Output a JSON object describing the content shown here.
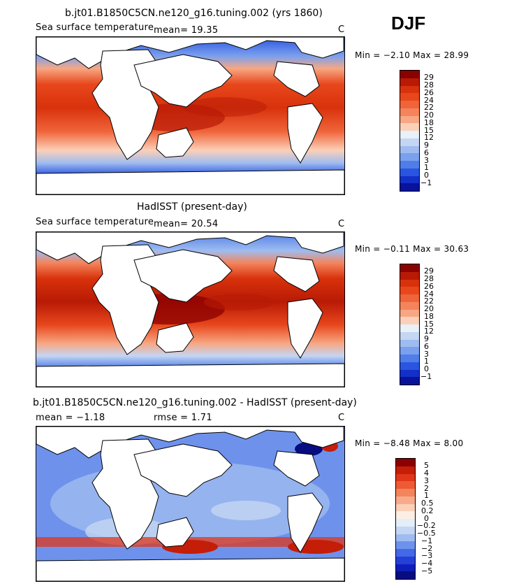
{
  "season": "DJF",
  "panels": [
    {
      "title": "b.jt01.B1850C5CN.ne120_g16.tuning.002 (yrs 1860)",
      "left_label": "Sea surface temperature",
      "stat1": "mean=  19.35",
      "stat2": "",
      "units": "C",
      "minmax": "Min =  −2.10 Max =  28.99",
      "colorbar": {
        "labels": [
          "29",
          "28",
          "26",
          "24",
          "22",
          "20",
          "18",
          "15",
          "12",
          "9",
          "6",
          "3",
          "1",
          "0",
          "−1"
        ],
        "colors": [
          "#8b0000",
          "#b81a05",
          "#d8320c",
          "#e8471c",
          "#f0643a",
          "#f4845c",
          "#f7a783",
          "#fbd0b8",
          "#e8f0f8",
          "#c4d6f2",
          "#9fbcf0",
          "#7aa0ee",
          "#4f7ee8",
          "#2a55e0",
          "#1330c8",
          "#08129a"
        ]
      },
      "chart_data": {
        "type": "heatmap",
        "variable": "Sea surface temperature",
        "units": "C",
        "mean": 19.35,
        "min": -2.1,
        "max": 28.99,
        "contour_levels": [
          -1,
          0,
          1,
          3,
          6,
          9,
          12,
          15,
          18,
          20,
          22,
          24,
          26,
          28,
          29
        ]
      }
    },
    {
      "title": "HadISST (present-day)",
      "left_label": "Sea surface temperature",
      "stat1": "mean=  20.54",
      "stat2": "",
      "units": "C",
      "minmax": "Min =  −0.11 Max =  30.63",
      "colorbar": {
        "labels": [
          "29",
          "28",
          "26",
          "24",
          "22",
          "20",
          "18",
          "15",
          "12",
          "9",
          "6",
          "3",
          "1",
          "0",
          "−1"
        ],
        "colors": [
          "#8b0000",
          "#b81a05",
          "#d8320c",
          "#e8471c",
          "#f0643a",
          "#f4845c",
          "#f7a783",
          "#fbd0b8",
          "#e8f0f8",
          "#c4d6f2",
          "#9fbcf0",
          "#7aa0ee",
          "#4f7ee8",
          "#2a55e0",
          "#1330c8",
          "#08129a"
        ]
      },
      "chart_data": {
        "type": "heatmap",
        "variable": "Sea surface temperature",
        "units": "C",
        "mean": 20.54,
        "min": -0.11,
        "max": 30.63,
        "contour_levels": [
          -1,
          0,
          1,
          3,
          6,
          9,
          12,
          15,
          18,
          20,
          22,
          24,
          26,
          28,
          29
        ]
      }
    },
    {
      "title": "b.jt01.B1850C5CN.ne120_g16.tuning.002 - HadISST (present-day)",
      "left_label": "mean =  −1.18",
      "stat1": "rmse =   1.71",
      "stat2": "",
      "units": "C",
      "minmax": "Min =  −8.48 Max =   8.00",
      "colorbar": {
        "labels": [
          "5",
          "4",
          "3",
          "2",
          "1",
          "0.5",
          "0.2",
          "0",
          "−0.2",
          "−0.5",
          "−1",
          "−2",
          "−3",
          "−4",
          "−5"
        ],
        "colors": [
          "#8b0000",
          "#c41e08",
          "#e0361a",
          "#ee5a35",
          "#f4845c",
          "#f8ab8a",
          "#fbd0b8",
          "#fdeee4",
          "#e4eef9",
          "#c4d6f2",
          "#9fbcf0",
          "#6e92ec",
          "#4369e6",
          "#2440d6",
          "#0f1eb8",
          "#070d80"
        ]
      },
      "chart_data": {
        "type": "heatmap",
        "variable": "SST difference",
        "units": "C",
        "mean": -1.18,
        "rmse": 1.71,
        "min": -8.48,
        "max": 8.0,
        "contour_levels": [
          -5,
          -4,
          -3,
          -2,
          -1,
          -0.5,
          -0.2,
          0,
          0.2,
          0.5,
          1,
          2,
          3,
          4,
          5
        ]
      }
    }
  ]
}
